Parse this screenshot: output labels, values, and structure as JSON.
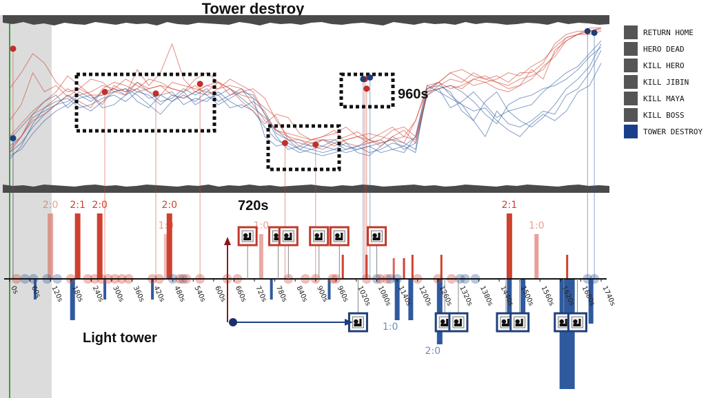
{
  "chart_data": {
    "type": "line",
    "title": "Tower destroy",
    "time_unit": "s",
    "xlim": [
      0,
      1740
    ],
    "x_ticks": [
      "0s",
      "60s",
      "120s",
      "180s",
      "240s",
      "300s",
      "360s",
      "420s",
      "480s",
      "540s",
      "600s",
      "660s",
      "720s",
      "780s",
      "840s",
      "900s",
      "960s",
      "1020s",
      "1080s",
      "1140s",
      "1200s",
      "1260s",
      "1320s",
      "1380s",
      "1440s",
      "1500s",
      "1560s",
      "1620s",
      "1680s",
      "1740s"
    ],
    "legend": [
      "RETURN HOME",
      "HERO DEAD",
      "KILL HERO",
      "KILL JIBIN",
      "KILL MAYA",
      "KILL BOSS",
      "TOWER DESTROY"
    ],
    "annotations": {
      "light_tower": "Light tower",
      "t720": "720s",
      "t960": "960s"
    },
    "red_bars": [
      {
        "t": 120,
        "h": 95,
        "label": "2:0",
        "fade": 0.45
      },
      {
        "t": 200,
        "h": 95,
        "label": "2:1",
        "fade": 1
      },
      {
        "t": 265,
        "h": 95,
        "label": "2:0",
        "fade": 1
      },
      {
        "t": 460,
        "h": 65,
        "label": "1:0",
        "fade": 0.35
      },
      {
        "t": 470,
        "h": 95,
        "label": "2:0",
        "fade": 1
      },
      {
        "t": 740,
        "h": 65,
        "label": "1:0",
        "fade": 0.45
      },
      {
        "t": 980,
        "h": 35,
        "label": "",
        "fade": 1
      },
      {
        "t": 1050,
        "h": 35,
        "label": "",
        "fade": 1
      },
      {
        "t": 1130,
        "h": 30,
        "label": "",
        "fade": 0.8
      },
      {
        "t": 1160,
        "h": 30,
        "label": "",
        "fade": 1
      },
      {
        "t": 1185,
        "h": 35,
        "label": "",
        "fade": 1
      },
      {
        "t": 1270,
        "h": 35,
        "label": "",
        "fade": 1
      },
      {
        "t": 1470,
        "h": 95,
        "label": "2:1",
        "fade": 1
      },
      {
        "t": 1550,
        "h": 65,
        "label": "1:0",
        "fade": 0.5
      },
      {
        "t": 1640,
        "h": 35,
        "label": "",
        "fade": 1
      }
    ],
    "blue_bars": [
      {
        "t": 75,
        "h": 30,
        "label": ""
      },
      {
        "t": 185,
        "h": 60,
        "label": ""
      },
      {
        "t": 280,
        "h": 30,
        "label": ""
      },
      {
        "t": 420,
        "h": 30,
        "label": ""
      },
      {
        "t": 770,
        "h": 30,
        "label": ""
      },
      {
        "t": 940,
        "h": 30,
        "label": ""
      },
      {
        "t": 1140,
        "h": 60,
        "label": "1:0"
      },
      {
        "t": 1180,
        "h": 60,
        "label": ""
      },
      {
        "t": 1265,
        "h": 95,
        "label": "2:0"
      },
      {
        "t": 1470,
        "h": 65,
        "label": ""
      },
      {
        "t": 1510,
        "h": 65,
        "label": ""
      },
      {
        "t": 1640,
        "h": 160,
        "label": ""
      },
      {
        "t": 1710,
        "h": 65,
        "label": ""
      }
    ],
    "red_events": [
      20,
      180,
      230,
      250,
      270,
      290,
      310,
      330,
      350,
      420,
      440,
      500,
      520,
      560,
      640,
      670,
      820,
      870,
      900,
      950,
      960,
      1050,
      1090,
      1110,
      1200,
      1260,
      1300
    ],
    "blue_events": [
      45,
      70,
      110,
      140,
      480,
      510,
      1080,
      1120,
      1140,
      1325,
      1340,
      1370,
      1700,
      1720
    ],
    "red_icons": [
      700,
      790,
      820,
      910,
      970,
      1080
    ],
    "blue_icons": [
      1025,
      1280,
      1320,
      1460,
      1500,
      1630,
      1670
    ],
    "red_markers": [
      {
        "t": 10,
        "v": 85
      },
      {
        "t": 280,
        "v": 58
      },
      {
        "t": 430,
        "v": 57
      },
      {
        "t": 560,
        "v": 63
      },
      {
        "t": 810,
        "v": 26
      },
      {
        "t": 900,
        "v": 25
      },
      {
        "t": 1050,
        "v": 60
      },
      {
        "t": 1045,
        "v": 66
      }
    ],
    "blue_markers": [
      {
        "t": 10,
        "v": 29
      },
      {
        "t": 1040,
        "v": 66
      },
      {
        "t": 1060,
        "v": 67
      },
      {
        "t": 1700,
        "v": 96
      },
      {
        "t": 1720,
        "v": 95
      }
    ],
    "red_series": [
      [
        40,
        50,
        70,
        58,
        62,
        55,
        60,
        66,
        64,
        58,
        56,
        72,
        62,
        70,
        88,
        66,
        58,
        62,
        64,
        60,
        52,
        46,
        38,
        44,
        42,
        32,
        28,
        28,
        28,
        30,
        33,
        28,
        24,
        30,
        34,
        26,
        58,
        64,
        70,
        72,
        68,
        66,
        64,
        60,
        62,
        72,
        66,
        84,
        90,
        94,
        96,
        98
      ],
      [
        30,
        38,
        46,
        52,
        58,
        68,
        62,
        56,
        56,
        60,
        58,
        64,
        60,
        62,
        60,
        58,
        66,
        70,
        64,
        56,
        58,
        60,
        54,
        40,
        30,
        24,
        28,
        30,
        32,
        36,
        30,
        28,
        26,
        28,
        30,
        40,
        60,
        64,
        70,
        66,
        62,
        64,
        66,
        70,
        68,
        74,
        78,
        86,
        92,
        94,
        98,
        98
      ],
      [
        22,
        30,
        44,
        48,
        54,
        60,
        56,
        58,
        62,
        60,
        66,
        62,
        58,
        56,
        64,
        62,
        60,
        58,
        64,
        60,
        56,
        54,
        48,
        42,
        28,
        28,
        24,
        22,
        26,
        28,
        30,
        26,
        28,
        34,
        36,
        30,
        56,
        62,
        66,
        64,
        70,
        66,
        68,
        64,
        70,
        70,
        76,
        88,
        94,
        96,
        96,
        98
      ],
      [
        60,
        70,
        82,
        76,
        64,
        58,
        60,
        56,
        50,
        62,
        58,
        60,
        66,
        64,
        60,
        58,
        62,
        56,
        60,
        66,
        62,
        58,
        44,
        34,
        32,
        30,
        28,
        30,
        34,
        26,
        24,
        28,
        32,
        36,
        30,
        28,
        58,
        60,
        62,
        60,
        66,
        64,
        60,
        58,
        62,
        66,
        74,
        80,
        90,
        94,
        96,
        97
      ],
      [
        20,
        30,
        40,
        44,
        50,
        56,
        52,
        48,
        60,
        64,
        62,
        58,
        60,
        62,
        56,
        54,
        58,
        62,
        60,
        62,
        60,
        50,
        40,
        34,
        30,
        28,
        26,
        28,
        24,
        28,
        30,
        32,
        30,
        28,
        26,
        40,
        62,
        64,
        60,
        62,
        66,
        68,
        64,
        62,
        66,
        68,
        72,
        82,
        92,
        94,
        94,
        96
      ]
    ],
    "blue_series": [
      [
        18,
        22,
        32,
        40,
        46,
        50,
        56,
        52,
        58,
        60,
        56,
        64,
        58,
        52,
        54,
        60,
        56,
        60,
        52,
        56,
        60,
        54,
        30,
        24,
        26,
        22,
        20,
        18,
        20,
        22,
        24,
        20,
        22,
        26,
        24,
        20,
        60,
        64,
        56,
        50,
        40,
        30,
        46,
        38,
        36,
        40,
        46,
        44,
        56,
        60,
        70,
        84
      ],
      [
        20,
        26,
        36,
        44,
        50,
        52,
        58,
        54,
        56,
        58,
        60,
        56,
        50,
        44,
        52,
        56,
        52,
        58,
        56,
        48,
        50,
        46,
        36,
        28,
        24,
        20,
        22,
        24,
        22,
        26,
        20,
        18,
        24,
        30,
        26,
        22,
        58,
        60,
        48,
        52,
        58,
        50,
        42,
        46,
        40,
        36,
        42,
        50,
        60,
        66,
        74,
        88
      ],
      [
        28,
        36,
        44,
        52,
        56,
        48,
        54,
        56,
        48,
        50,
        56,
        60,
        54,
        56,
        58,
        50,
        54,
        52,
        58,
        52,
        48,
        52,
        46,
        32,
        28,
        26,
        24,
        28,
        26,
        22,
        24,
        26,
        28,
        22,
        20,
        30,
        60,
        62,
        58,
        46,
        40,
        52,
        58,
        46,
        48,
        50,
        58,
        64,
        70,
        74,
        82,
        90
      ],
      [
        24,
        30,
        42,
        46,
        50,
        56,
        50,
        46,
        52,
        58,
        60,
        52,
        48,
        56,
        52,
        58,
        50,
        54,
        56,
        60,
        54,
        48,
        42,
        34,
        28,
        22,
        26,
        24,
        28,
        24,
        22,
        24,
        26,
        28,
        22,
        26,
        56,
        60,
        62,
        58,
        52,
        44,
        38,
        50,
        54,
        56,
        60,
        62,
        66,
        72,
        80,
        86
      ],
      [
        16,
        24,
        38,
        48,
        52,
        54,
        48,
        50,
        54,
        56,
        52,
        58,
        56,
        50,
        56,
        54,
        58,
        56,
        50,
        54,
        58,
        56,
        44,
        30,
        22,
        24,
        22,
        20,
        22,
        20,
        22,
        24,
        20,
        22,
        24,
        30,
        62,
        58,
        54,
        50,
        46,
        48,
        40,
        34,
        30,
        38,
        44,
        40,
        46,
        58,
        62,
        76
      ]
    ],
    "upper_band": [
      3,
      5,
      2,
      6,
      4,
      7,
      3,
      5,
      6,
      2,
      4,
      6,
      3,
      5,
      4,
      7,
      2,
      5,
      6,
      3,
      4,
      5,
      6,
      2,
      4,
      7,
      3,
      5,
      4,
      6,
      3,
      2,
      5,
      6,
      4,
      3,
      5,
      7,
      2,
      4,
      6,
      3,
      5,
      4,
      6,
      2,
      5,
      3,
      4,
      6,
      5,
      3,
      4,
      6,
      2,
      5,
      3,
      4,
      6,
      5
    ],
    "lower_band": [
      6,
      4,
      5,
      3,
      6,
      5,
      4,
      3,
      5,
      6,
      4,
      5,
      3,
      4,
      6,
      5,
      4,
      3,
      5,
      4,
      6,
      3,
      5,
      4,
      6,
      4,
      5,
      3,
      4,
      5,
      6,
      4,
      3,
      5,
      4,
      6,
      5,
      3,
      4,
      5,
      6,
      4,
      5,
      3,
      4,
      6,
      5,
      4,
      3,
      5,
      4,
      6,
      5,
      4,
      3,
      5,
      6,
      4,
      5,
      4
    ]
  }
}
